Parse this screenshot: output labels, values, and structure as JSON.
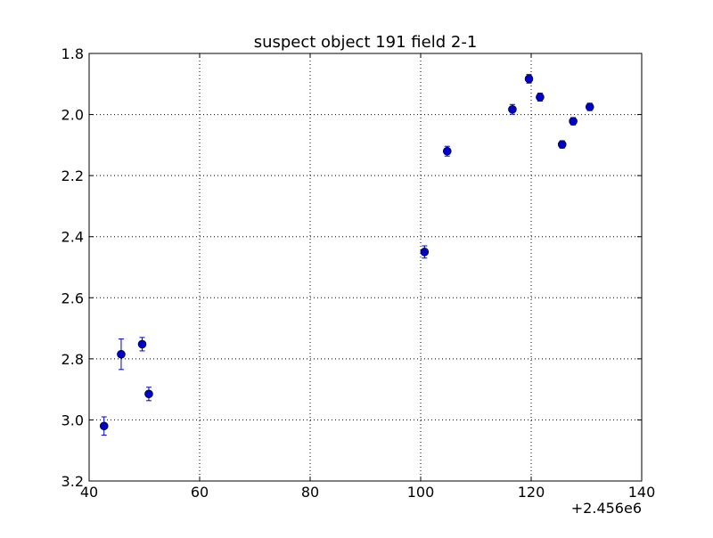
{
  "chart_data": {
    "type": "scatter",
    "title": "suspect object 191 field 2-1",
    "xlabel": "",
    "ylabel": "",
    "x_offset_label": "+2.456e6",
    "xlim": [
      40,
      140
    ],
    "ylim": [
      3.2,
      1.8
    ],
    "y_inverted": true,
    "grid": true,
    "x_ticks": [
      {
        "value": 40,
        "label": "40"
      },
      {
        "value": 60,
        "label": "60"
      },
      {
        "value": 80,
        "label": "80"
      },
      {
        "value": 100,
        "label": "100"
      },
      {
        "value": 120,
        "label": "120"
      },
      {
        "value": 140,
        "label": "140"
      }
    ],
    "y_ticks": [
      {
        "value": 1.8,
        "label": "1.8"
      },
      {
        "value": 2.0,
        "label": "2.0"
      },
      {
        "value": 2.2,
        "label": "2.2"
      },
      {
        "value": 2.4,
        "label": "2.4"
      },
      {
        "value": 2.6,
        "label": "2.6"
      },
      {
        "value": 2.8,
        "label": "2.8"
      },
      {
        "value": 3.0,
        "label": "3.0"
      },
      {
        "value": 3.2,
        "label": "3.2"
      }
    ],
    "series": [
      {
        "color": "#0000cc",
        "points": [
          {
            "x": 42.7,
            "y": 3.02,
            "err": 0.03
          },
          {
            "x": 45.8,
            "y": 2.785,
            "err": 0.05
          },
          {
            "x": 49.6,
            "y": 2.752,
            "err": 0.022
          },
          {
            "x": 50.8,
            "y": 2.915,
            "err": 0.022
          },
          {
            "x": 100.7,
            "y": 2.45,
            "err": 0.02
          },
          {
            "x": 104.8,
            "y": 2.12,
            "err": 0.016
          },
          {
            "x": 116.6,
            "y": 1.983,
            "err": 0.016
          },
          {
            "x": 119.6,
            "y": 1.883,
            "err": 0.014
          },
          {
            "x": 121.6,
            "y": 1.943,
            "err": 0.013
          },
          {
            "x": 125.6,
            "y": 2.098,
            "err": 0.012
          },
          {
            "x": 127.6,
            "y": 2.022,
            "err": 0.012
          },
          {
            "x": 130.6,
            "y": 1.975,
            "err": 0.012
          }
        ]
      }
    ]
  }
}
